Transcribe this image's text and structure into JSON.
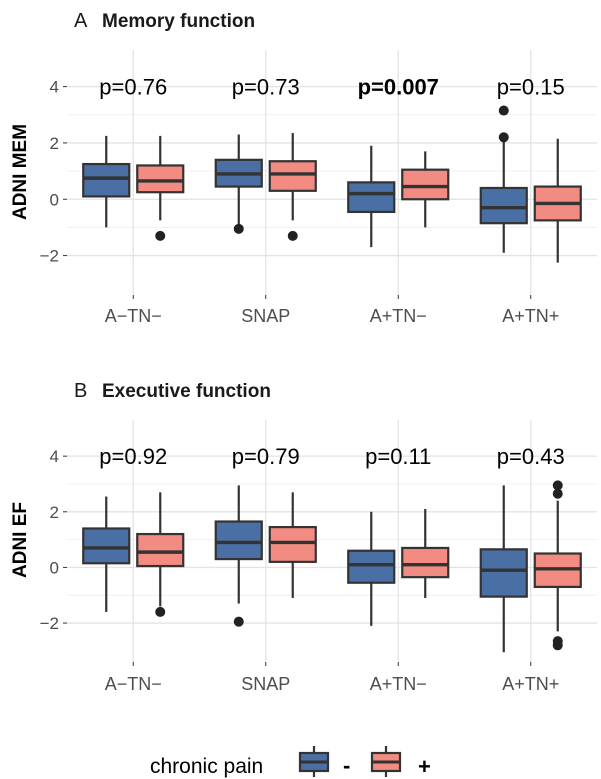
{
  "chart_data": [
    {
      "type": "box",
      "panel_letter": "A",
      "title": "Memory function",
      "ylabel": "ADNI MEM",
      "ylim": [
        -3.4,
        5.3
      ],
      "yticks": [
        -2,
        0,
        2,
        4
      ],
      "ytick_labels": [
        "−2",
        "0",
        "2",
        "4"
      ],
      "categories": [
        "A−TN−",
        "SNAP",
        "A+TN−",
        "A+TN+"
      ],
      "pvalues": [
        "p=0.76",
        "p=0.73",
        "p=0.007",
        "p=0.15"
      ],
      "pvalue_bold": [
        false,
        false,
        true,
        false
      ],
      "series": [
        {
          "name": "-",
          "color": "#4a6fa5",
          "boxes": [
            {
              "whisker_low": -1.0,
              "q1": 0.1,
              "median": 0.75,
              "q3": 1.25,
              "whisker_high": 2.25,
              "outliers": []
            },
            {
              "whisker_low": -1.0,
              "q1": 0.45,
              "median": 0.9,
              "q3": 1.4,
              "whisker_high": 2.3,
              "outliers": [
                -1.05
              ]
            },
            {
              "whisker_low": -1.7,
              "q1": -0.45,
              "median": 0.2,
              "q3": 0.6,
              "whisker_high": 1.9,
              "outliers": []
            },
            {
              "whisker_low": -1.9,
              "q1": -0.85,
              "median": -0.3,
              "q3": 0.4,
              "whisker_high": 2.1,
              "outliers": [
                2.2,
                3.15
              ]
            }
          ]
        },
        {
          "name": "+",
          "color": "#f28b82",
          "boxes": [
            {
              "whisker_low": -0.75,
              "q1": 0.25,
              "median": 0.65,
              "q3": 1.2,
              "whisker_high": 2.25,
              "outliers": [
                -1.3
              ]
            },
            {
              "whisker_low": -0.75,
              "q1": 0.3,
              "median": 0.9,
              "q3": 1.35,
              "whisker_high": 2.35,
              "outliers": [
                -1.3
              ]
            },
            {
              "whisker_low": -1.0,
              "q1": 0.0,
              "median": 0.45,
              "q3": 1.05,
              "whisker_high": 1.7,
              "outliers": []
            },
            {
              "whisker_low": -2.25,
              "q1": -0.75,
              "median": -0.15,
              "q3": 0.45,
              "whisker_high": 2.15,
              "outliers": []
            }
          ]
        }
      ]
    },
    {
      "type": "box",
      "panel_letter": "B",
      "title": "Executive function",
      "ylabel": "ADNI EF",
      "ylim": [
        -3.4,
        5.3
      ],
      "yticks": [
        -2,
        0,
        2,
        4
      ],
      "ytick_labels": [
        "−2",
        "0",
        "2",
        "4"
      ],
      "categories": [
        "A−TN−",
        "SNAP",
        "A+TN−",
        "A+TN+"
      ],
      "pvalues": [
        "p=0.92",
        "p=0.79",
        "p=0.11",
        "p=0.43"
      ],
      "pvalue_bold": [
        false,
        false,
        false,
        false
      ],
      "series": [
        {
          "name": "-",
          "color": "#4a6fa5",
          "boxes": [
            {
              "whisker_low": -1.6,
              "q1": 0.15,
              "median": 0.7,
              "q3": 1.4,
              "whisker_high": 2.55,
              "outliers": []
            },
            {
              "whisker_low": -1.3,
              "q1": 0.3,
              "median": 0.9,
              "q3": 1.65,
              "whisker_high": 2.95,
              "outliers": [
                -1.95
              ]
            },
            {
              "whisker_low": -2.1,
              "q1": -0.55,
              "median": 0.1,
              "q3": 0.6,
              "whisker_high": 2.0,
              "outliers": []
            },
            {
              "whisker_low": -3.05,
              "q1": -1.05,
              "median": -0.1,
              "q3": 0.65,
              "whisker_high": 2.95,
              "outliers": []
            }
          ]
        },
        {
          "name": "+",
          "color": "#f28b82",
          "boxes": [
            {
              "whisker_low": -1.4,
              "q1": 0.05,
              "median": 0.55,
              "q3": 1.2,
              "whisker_high": 2.7,
              "outliers": [
                -1.6
              ]
            },
            {
              "whisker_low": -1.1,
              "q1": 0.2,
              "median": 0.9,
              "q3": 1.45,
              "whisker_high": 2.7,
              "outliers": []
            },
            {
              "whisker_low": -1.1,
              "q1": -0.35,
              "median": 0.1,
              "q3": 0.7,
              "whisker_high": 2.1,
              "outliers": []
            },
            {
              "whisker_low": -2.3,
              "q1": -0.7,
              "median": -0.05,
              "q3": 0.5,
              "whisker_high": 2.4,
              "outliers": [
                2.65,
                2.95,
                -2.65,
                -2.8
              ]
            }
          ]
        }
      ]
    }
  ],
  "legend": {
    "title": "chronic pain",
    "items": [
      {
        "label": "-",
        "color": "#4a6fa5"
      },
      {
        "label": "+",
        "color": "#f28b82"
      }
    ]
  }
}
